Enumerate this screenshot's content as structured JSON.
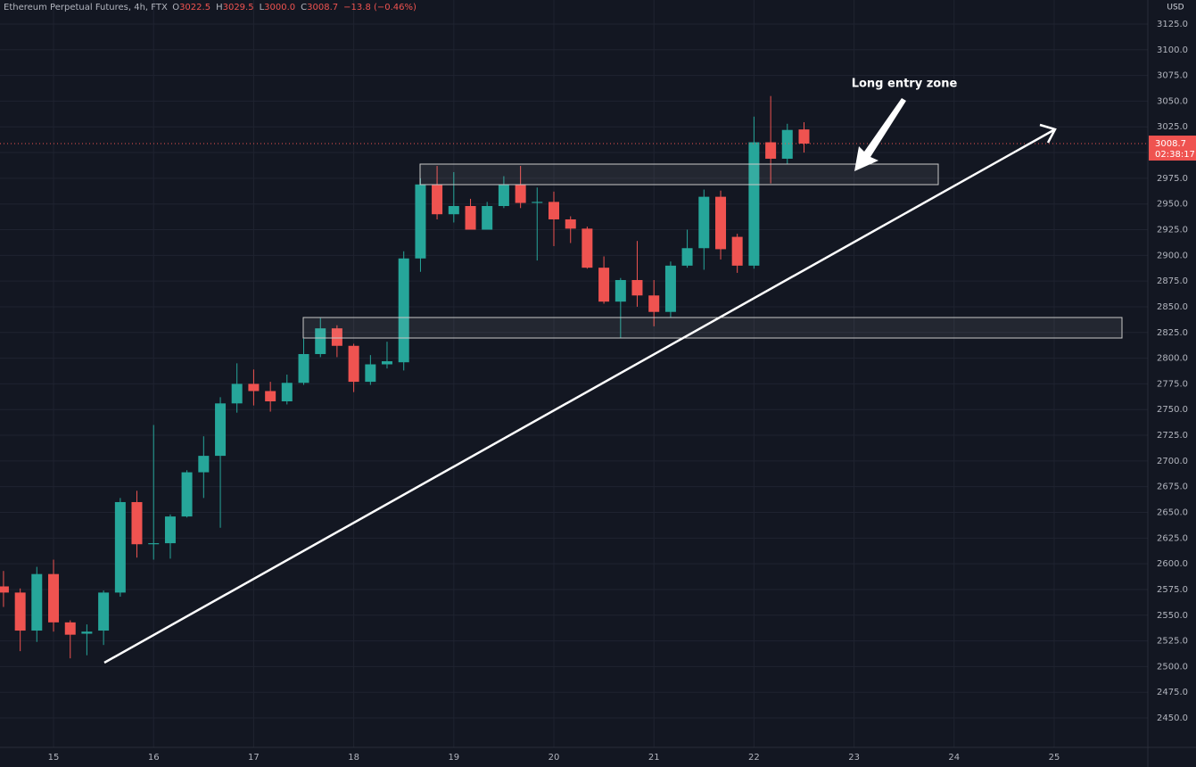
{
  "chart_data": {
    "type": "candlestick",
    "legend": {
      "symbol": "Ethereum Perpetual Futures, 4h, FTX",
      "items": [
        {
          "key": "O",
          "value": "3022.5"
        },
        {
          "key": "H",
          "value": "3029.5"
        },
        {
          "key": "L",
          "value": "3000.0"
        },
        {
          "key": "C",
          "value": "3008.7"
        }
      ],
      "change": "−13.8 (−0.46%)"
    },
    "currency": "USD",
    "annotation": "Long entry zone",
    "up_color": "#26a69a",
    "down_color": "#ef5350",
    "grid": true,
    "x": [
      14.5,
      14.667,
      14.833,
      15,
      15.167,
      15.333,
      15.5,
      15.667,
      15.833,
      16,
      16.167,
      16.333,
      16.5,
      16.667,
      16.833,
      17,
      17.167,
      17.333,
      17.5,
      17.667,
      17.833,
      18,
      18.167,
      18.333,
      18.5,
      18.667,
      18.833,
      19,
      19.167,
      19.333,
      19.5,
      19.667,
      19.833,
      20,
      20.167,
      20.333,
      20.5,
      20.667,
      20.833,
      21,
      21.167,
      21.333,
      21.5,
      21.667,
      21.833,
      22,
      22.167,
      22.333,
      22.5
    ],
    "open": [
      2578,
      2572,
      2535,
      2590,
      2543,
      2532,
      2535,
      2572,
      2660,
      2619,
      2620,
      2646,
      2689,
      2705,
      2756,
      2775,
      2768,
      2758,
      2776,
      2804,
      2829,
      2812,
      2777,
      2794,
      2796,
      2897,
      2969,
      2940,
      2948,
      2925,
      2948,
      2969,
      2951,
      2952,
      2935,
      2926,
      2888,
      2855,
      2876,
      2861,
      2845,
      2890,
      2907,
      2957,
      2918,
      2890,
      3010,
      2994,
      3022.5
    ],
    "high": [
      2593,
      2576,
      2597,
      2604,
      2545,
      2541,
      2574,
      2664,
      2671,
      2735,
      2648,
      2691,
      2724,
      2762,
      2795,
      2789,
      2777,
      2784,
      2819,
      2839,
      2832,
      2814,
      2803,
      2816,
      2904,
      2975,
      2987,
      2981,
      2955,
      2952,
      2977,
      2987,
      2966,
      2962,
      2938,
      2928,
      2899,
      2878,
      2914,
      2876,
      2894,
      2925,
      2964,
      2963,
      2921,
      3035,
      3055,
      3028,
      3029.5
    ],
    "low": [
      2558,
      2515,
      2524,
      2534,
      2508,
      2511,
      2521,
      2568,
      2606,
      2604,
      2605,
      2645,
      2664,
      2635,
      2747,
      2754,
      2748,
      2755,
      2774,
      2801,
      2801,
      2767,
      2774,
      2790,
      2788,
      2884,
      2935,
      2932,
      2925,
      2925,
      2946,
      2946,
      2895,
      2909,
      2912,
      2887,
      2853,
      2820,
      2850,
      2831,
      2840,
      2888,
      2886,
      2896,
      2883,
      2887,
      2970,
      2989,
      3000
    ],
    "close": [
      2572,
      2535,
      2590,
      2543,
      2531,
      2534,
      2572,
      2660,
      2619,
      2620,
      2646,
      2689,
      2705,
      2756,
      2775,
      2768,
      2758,
      2776,
      2804,
      2829,
      2812,
      2777,
      2794,
      2797,
      2897,
      2969,
      2940,
      2948,
      2925,
      2948,
      2969,
      2951,
      2952,
      2935,
      2926,
      2888,
      2855,
      2876,
      2861,
      2845,
      2890,
      2907,
      2957,
      2906,
      2890,
      3010,
      2994,
      3022,
      3008.7
    ],
    "last_price": {
      "value": 3008.7,
      "label": "3008.7"
    },
    "countdown": "02:38:17",
    "xlim": [
      14.465,
      25.936
    ],
    "xticks": [
      15,
      16,
      17,
      18,
      19,
      20,
      21,
      22,
      23,
      24,
      25
    ],
    "ylim": [
      2421.4,
      3148.4
    ],
    "yticks": [
      {
        "value": 2450,
        "label": "2450.0"
      },
      {
        "value": 2475,
        "label": "2475.0"
      },
      {
        "value": 2500,
        "label": "2500.0"
      },
      {
        "value": 2525,
        "label": "2525.0"
      },
      {
        "value": 2550,
        "label": "2550.0"
      },
      {
        "value": 2575,
        "label": "2575.0"
      },
      {
        "value": 2600,
        "label": "2600.0"
      },
      {
        "value": 2625,
        "label": "2625.0"
      },
      {
        "value": 2650,
        "label": "2650.0"
      },
      {
        "value": 2675,
        "label": "2675.0"
      },
      {
        "value": 2700,
        "label": "2700.0"
      },
      {
        "value": 2725,
        "label": "2725.0"
      },
      {
        "value": 2750,
        "label": "2750.0"
      },
      {
        "value": 2775,
        "label": "2775.0"
      },
      {
        "value": 2800,
        "label": "2800.0"
      },
      {
        "value": 2825,
        "label": "2825.0"
      },
      {
        "value": 2850,
        "label": "2850.0"
      },
      {
        "value": 2875,
        "label": "2875.0"
      },
      {
        "value": 2900,
        "label": "2900.0"
      },
      {
        "value": 2925,
        "label": "2925.0"
      },
      {
        "value": 2950,
        "label": "2950.0"
      },
      {
        "value": 2975,
        "label": "2975.0"
      },
      {
        "value": 3000,
        "label": "3000.0"
      },
      {
        "value": 3025,
        "label": "3025.0"
      },
      {
        "value": 3050,
        "label": "3050.0"
      },
      {
        "value": 3075,
        "label": "3075.0"
      },
      {
        "value": 3100,
        "label": "3100.0"
      },
      {
        "value": 3125,
        "label": "3125.0"
      }
    ]
  }
}
